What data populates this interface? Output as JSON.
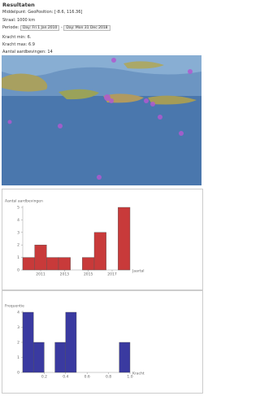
{
  "header": {
    "title": "Resultaten"
  },
  "fields": [
    "Middelpunt: GeoPosition: [-8.6, 116.36]",
    "Straal: 1000 km"
  ],
  "period": {
    "label": "Periode:",
    "from": "Day: Fri 1 Jan 2010",
    "separator": "-",
    "to": "Day: Mon 31 Dec 2018"
  },
  "stats": [
    "Kracht min: 6.",
    "Kracht max: 6.9",
    "Aantal aardbevingen: 14"
  ],
  "charts": [
    {
      "type": "bar",
      "y_label": "Aantal aardbevingen",
      "x_label": "Jaartal",
      "x": [
        2010,
        2011,
        2012,
        2013,
        2014,
        2015,
        2016,
        2017,
        2018
      ],
      "values": [
        1,
        2,
        1,
        1,
        0,
        1,
        3,
        0,
        5
      ],
      "color": "#c83a3a",
      "xlim": [
        2009.5,
        2018.5
      ],
      "xticks": [
        2011,
        2013,
        2015,
        2017
      ],
      "ylim": [
        0,
        5
      ],
      "yticks": [
        0,
        1,
        2,
        3,
        4,
        5
      ]
    },
    {
      "type": "histogram",
      "y_label": "Frequentie",
      "x_label": "Kracht",
      "bins": [
        0,
        0.1,
        0.2,
        0.3,
        0.4,
        0.5,
        0.6,
        0.7,
        0.8,
        0.9,
        1
      ],
      "values": [
        4,
        2,
        0,
        2,
        4,
        0,
        0,
        0,
        0,
        2
      ],
      "color": "#3a3aa0",
      "xlim": [
        0,
        1
      ],
      "xticks": [
        0.2,
        0.4,
        0.6,
        0.8,
        {
          "value": 1,
          "label": "1.0"
        }
      ],
      "ylim": [
        0,
        4
      ],
      "yticks": [
        0,
        1,
        2,
        3,
        4
      ]
    }
  ]
}
